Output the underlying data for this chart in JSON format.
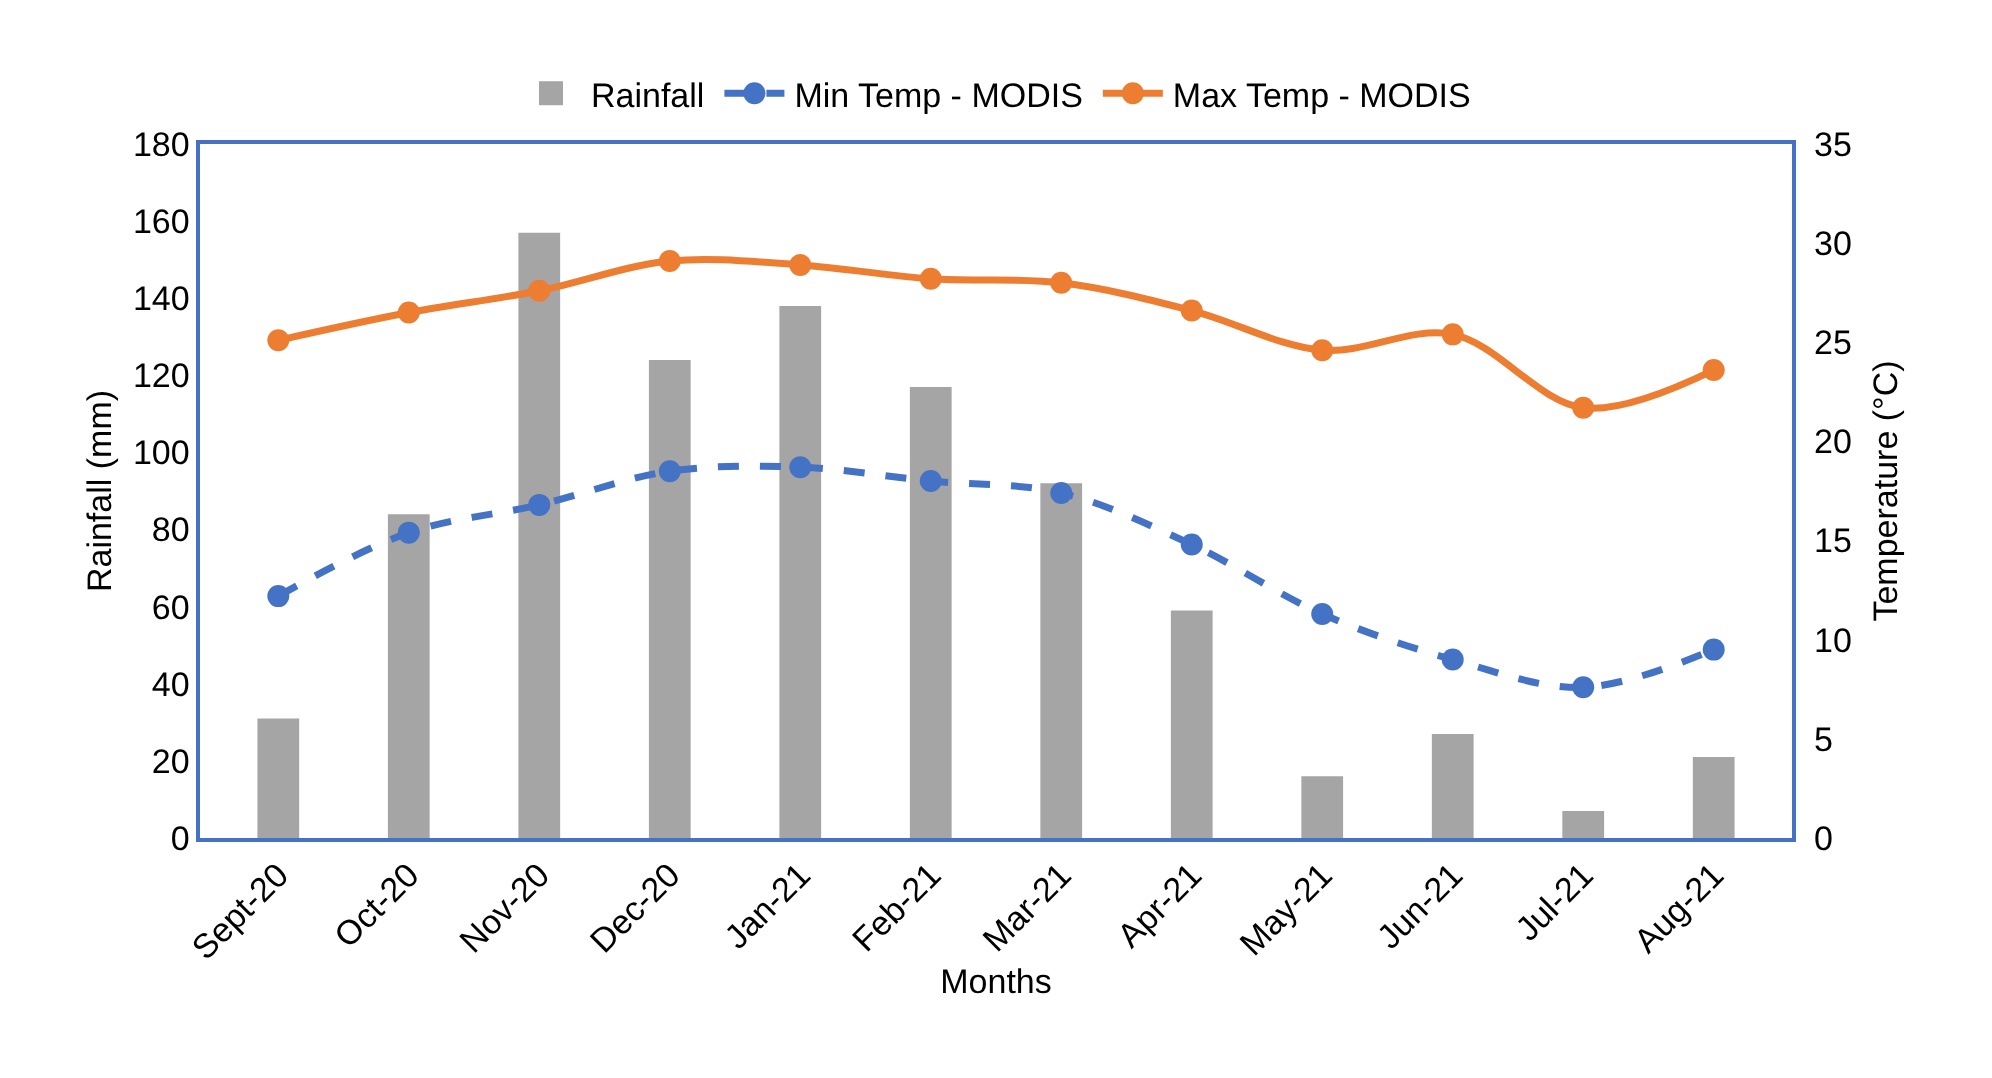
{
  "chart_data": {
    "type": "bar",
    "xlabel": "Months",
    "ylabel": "Rainfall (mm)",
    "y2label": "Temperature (°C)",
    "categories": [
      "Sept-20",
      "Oct-20",
      "Nov-20",
      "Dec-20",
      "Jan-21",
      "Feb-21",
      "Mar-21",
      "Apr-21",
      "May-21",
      "Jun-21",
      "Jul-21",
      "Aug-21"
    ],
    "series": [
      {
        "name": "Rainfall",
        "color": "#a5a5a5",
        "values": [
          31,
          84,
          157,
          124,
          138,
          117,
          92,
          59,
          16,
          27,
          7,
          21
        ]
      },
      {
        "name": "Min Temp - MODIS",
        "type": "line",
        "axis": "y2",
        "color": "#4472c4",
        "line_style": "dashed",
        "marker": "circle",
        "values": [
          12.2,
          15.4,
          16.8,
          18.5,
          18.7,
          18.0,
          17.4,
          14.8,
          11.3,
          9.0,
          7.6,
          9.5
        ]
      },
      {
        "name": "Max Temp - MODIS",
        "type": "line",
        "axis": "y2",
        "color": "#ed7d31",
        "line_style": "solid",
        "marker": "circle",
        "values": [
          25.1,
          26.5,
          27.6,
          29.1,
          28.9,
          28.2,
          28.0,
          26.6,
          24.6,
          25.4,
          21.7,
          23.6
        ]
      }
    ],
    "ylim": [
      0,
      180
    ],
    "yticks": [
      0,
      20,
      40,
      60,
      80,
      100,
      120,
      140,
      160,
      180
    ],
    "y2lim": [
      0,
      35
    ],
    "y2ticks": [
      0,
      5,
      10,
      15,
      20,
      25,
      30,
      35
    ],
    "grid": false,
    "legend": "top"
  }
}
